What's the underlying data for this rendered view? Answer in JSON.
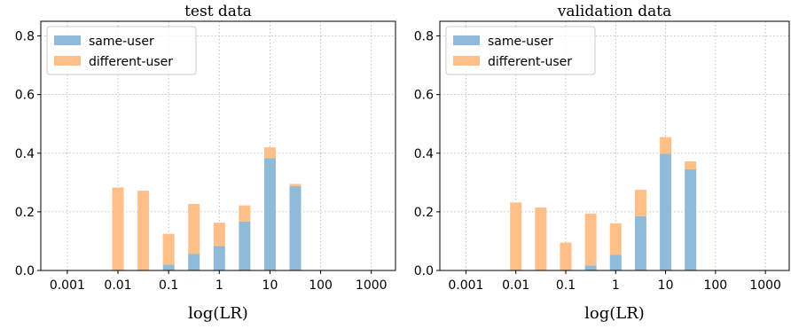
{
  "colors": {
    "same_user": "#8fbbd9",
    "different_user": "#ffbf86"
  },
  "chart_data": [
    {
      "type": "bar",
      "stacked": true,
      "title": "test data",
      "xlabel": "log(LR)",
      "ylabel": "",
      "x_scale": "log",
      "xlim": [
        0.0003,
        3000
      ],
      "ylim": [
        0,
        0.85
      ],
      "grid": true,
      "legend_position": "top-left",
      "x_tick_labels": [
        "0.001",
        "0.01",
        "0.1",
        "1",
        "10",
        "100",
        "1000"
      ],
      "x_ticks": [
        0.001,
        0.01,
        0.1,
        1,
        10,
        100,
        1000
      ],
      "y_tick_labels": [
        "0.0",
        "0.2",
        "0.4",
        "0.6",
        "0.8"
      ],
      "y_ticks": [
        0,
        0.2,
        0.4,
        0.6,
        0.8
      ],
      "bin_centers": [
        0.01,
        0.0316,
        0.1,
        0.316,
        1,
        3.16,
        10,
        31.6
      ],
      "series": [
        {
          "name": "same-user",
          "color_key": "same_user",
          "values": [
            0,
            0,
            0.02,
            0.057,
            0.083,
            0.167,
            0.383,
            0.288
          ]
        },
        {
          "name": "different-user",
          "color_key": "different_user",
          "values": [
            0.283,
            0.272,
            0.105,
            0.17,
            0.08,
            0.055,
            0.037,
            0.007
          ]
        }
      ]
    },
    {
      "type": "bar",
      "stacked": true,
      "title": "validation data",
      "xlabel": "log(LR)",
      "ylabel": "",
      "x_scale": "log",
      "xlim": [
        0.0003,
        3000
      ],
      "ylim": [
        0,
        0.85
      ],
      "grid": true,
      "legend_position": "top-left",
      "x_tick_labels": [
        "0.001",
        "0.01",
        "0.1",
        "1",
        "10",
        "100",
        "1000"
      ],
      "x_ticks": [
        0.001,
        0.01,
        0.1,
        1,
        10,
        100,
        1000
      ],
      "y_tick_labels": [
        "0.0",
        "0.2",
        "0.4",
        "0.6",
        "0.8"
      ],
      "y_ticks": [
        0,
        0.2,
        0.4,
        0.6,
        0.8
      ],
      "bin_centers": [
        0.01,
        0.0316,
        0.1,
        0.316,
        1,
        3.16,
        10,
        31.6
      ],
      "series": [
        {
          "name": "same-user",
          "color_key": "same_user",
          "values": [
            0,
            0,
            0,
            0.017,
            0.053,
            0.185,
            0.398,
            0.345
          ]
        },
        {
          "name": "different-user",
          "color_key": "different_user",
          "values": [
            0.232,
            0.215,
            0.095,
            0.177,
            0.108,
            0.09,
            0.057,
            0.027
          ]
        }
      ]
    }
  ]
}
